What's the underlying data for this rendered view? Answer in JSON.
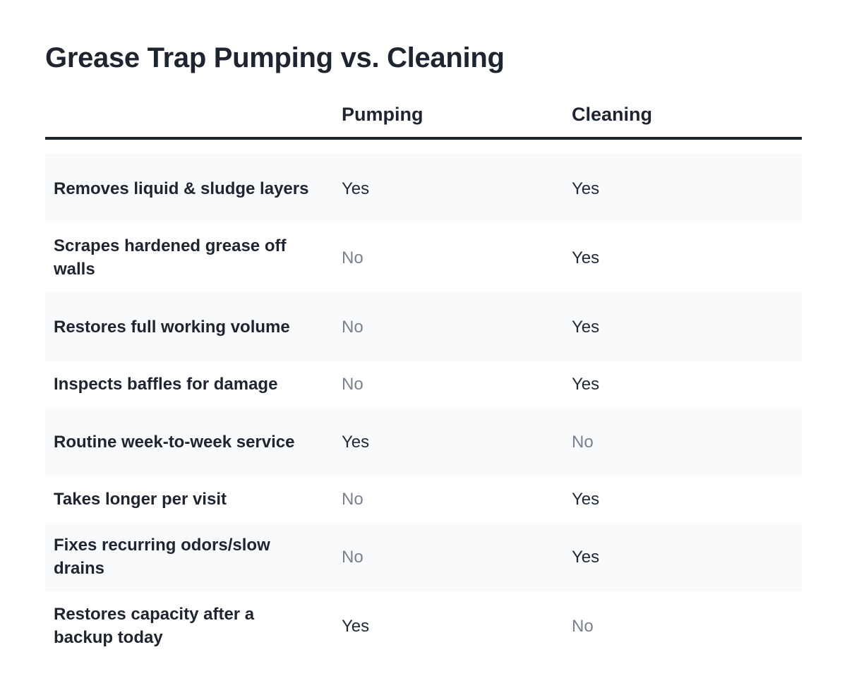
{
  "title": "Grease Trap Pumping vs. Cleaning",
  "columns": [
    "Pumping",
    "Cleaning"
  ],
  "rows": [
    {
      "feature": "Removes liquid & sludge layers",
      "pumping": "Yes",
      "cleaning": "Yes"
    },
    {
      "feature": "Scrapes hardened grease off walls",
      "pumping": "No",
      "cleaning": "Yes"
    },
    {
      "feature": "Restores full working volume",
      "pumping": "No",
      "cleaning": "Yes"
    },
    {
      "feature": "Inspects baffles for damage",
      "pumping": "No",
      "cleaning": "Yes"
    },
    {
      "feature": "Routine week-to-week service",
      "pumping": "Yes",
      "cleaning": "No"
    },
    {
      "feature": "Takes longer per visit",
      "pumping": "No",
      "cleaning": "Yes"
    },
    {
      "feature": "Fixes recurring odors/slow drains",
      "pumping": "No",
      "cleaning": "Yes"
    },
    {
      "feature": "Restores capacity after a backup today",
      "pumping": "Yes",
      "cleaning": "No"
    }
  ],
  "colors": {
    "heading": "#1e2530",
    "yes_text": "#1f2937",
    "no_text": "#7b8190",
    "row_stripe": "#f8fafc"
  }
}
